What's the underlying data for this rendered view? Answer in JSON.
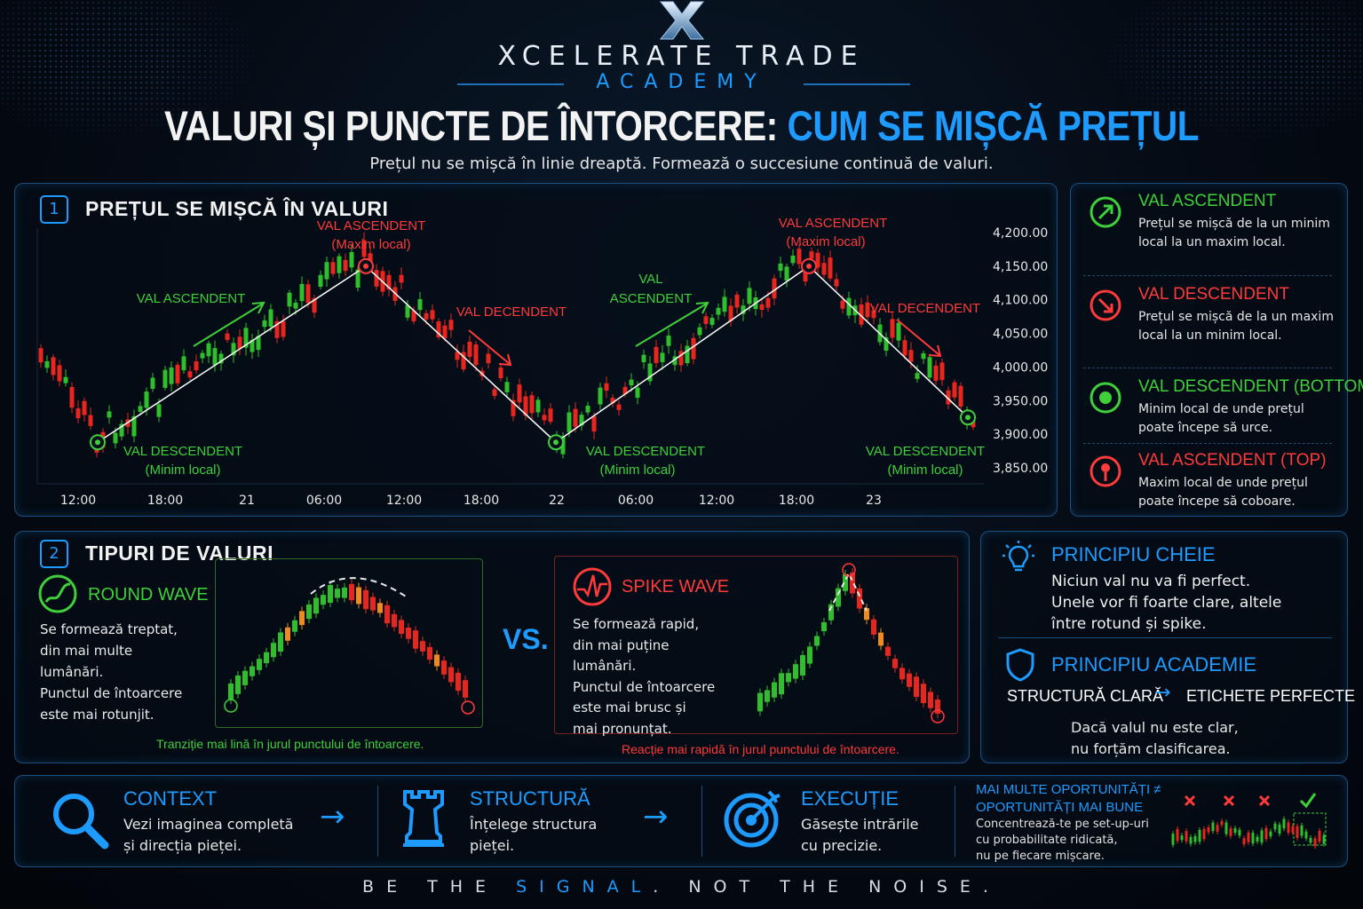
{
  "header": {
    "brand": "XCELERATE TRADE",
    "academy": "ACADEMY",
    "title_white": "VALURI ȘI PUNCTE DE ÎNTORCERE:",
    "title_blue": "CUM SE MIȘCĂ PREȚUL",
    "subtitle": "Prețul nu se mișcă în linie dreaptă. Formează o succesiune continuă de valuri."
  },
  "section1": {
    "num": "1",
    "title": "PREȚUL SE MIȘCĂ ÎN VALURI",
    "labels": {
      "top1_a": "VAL ASCENDENT",
      "top1_b": "(Maxim local)",
      "top2_a": "VAL ASCENDENT",
      "top2_b": "(Maxim local)",
      "bot1_a": "VAL DESCENDENT",
      "bot1_b": "(Minim local)",
      "bot2_a": "VAL DESCENDENT",
      "bot2_b": "(Minim local)",
      "bot3_a": "VAL DESCENDENT",
      "bot3_b": "(Minim local)",
      "up1": "VAL ASCENDENT",
      "up2_a": "VAL",
      "up2_b": "ASCENDENT",
      "down1": "VAL DECENDENT",
      "down2": "VAL DECENDENT"
    }
  },
  "chart_data": {
    "type": "candlestick",
    "x_ticks": [
      "12:00",
      "18:00",
      "21",
      "06:00",
      "12:00",
      "18:00",
      "22",
      "06:00",
      "12:00",
      "18:00",
      "23"
    ],
    "y_ticks": [
      "4,200.00",
      "4,150.00",
      "4,100.00",
      "4,050.00",
      "4,000.00",
      "3,950.00",
      "3,900.00",
      "3,850.00"
    ],
    "ylim": [
      3850,
      4200
    ],
    "swing_points": [
      {
        "label": "Minim local",
        "price": 3888
      },
      {
        "label": "Maxim local",
        "price": 4150
      },
      {
        "label": "Minim local",
        "price": 3888
      },
      {
        "label": "Maxim local",
        "price": 4150
      },
      {
        "label": "Minim local",
        "price": 3925
      }
    ],
    "colors": {
      "up": "#2fbf2c",
      "down": "#e8261f",
      "line": "#ffffff"
    }
  },
  "legend": [
    {
      "title": "VAL ASCENDENT",
      "desc": "Prețul se mișcă de la un minim local la un maxim local.",
      "color": "#3fcf3a",
      "icon": "arrow-up-right-icon"
    },
    {
      "title": "VAL DESCENDENT",
      "desc": "Prețul se mișcă de la un maxim local la un minim local.",
      "color": "#ff3a3a",
      "icon": "arrow-down-right-icon"
    },
    {
      "title": "VAL DESCENDENT (BOTTOM)",
      "desc": "Minim local de unde prețul poate începe să urce.",
      "color": "#3fcf3a",
      "icon": "target-bottom-icon"
    },
    {
      "title_a": "VAL ASCENDENT",
      "title_b": " (TOP)",
      "desc": "Maxim local de unde prețul poate începe să coboare.",
      "color": "#ff3a3a",
      "icon": "pin-top-icon"
    }
  ],
  "section2": {
    "num": "2",
    "title": "TIPURI DE VALURI",
    "round": {
      "title": "ROUND WAVE",
      "desc1": "Se formează treptat,",
      "desc2": "din mai multe",
      "desc3": "lumânări.",
      "desc4": "Punctul de întoarcere",
      "desc5": "este mai rotunjit.",
      "caption": "Tranziție mai lină în jurul punctului de întoarcere."
    },
    "vs": "VS.",
    "spike": {
      "title": "SPIKE WAVE",
      "desc1": "Se formează rapid,",
      "desc2": "din mai puține",
      "desc3": "lumânări.",
      "desc4": "Punctul de întoarcere",
      "desc5": "este mai brusc și",
      "desc6": "mai pronunțat.",
      "caption": "Reacție mai rapidă în jurul punctului de întoarcere."
    }
  },
  "principles": {
    "key_title": "PRINCIPIU CHEIE",
    "key_l1": "Niciun val nu va fi perfect.",
    "key_l2": "Unele vor fi foarte clare, altele",
    "key_l3": "între rotund și spike.",
    "acad_title": "PRINCIPIU ACADEMIE",
    "acad_left": "STRUCTURĂ CLARĂ",
    "acad_right": "ETICHETE PERFECTE",
    "acad_l1": "Dacă valul nu este clar,",
    "acad_l2": "nu forțăm clasificarea."
  },
  "bottom": {
    "context_title": "CONTEXT",
    "context_l1": "Vezi imaginea completă",
    "context_l2": "și direcția pieței.",
    "struct_title": "STRUCTURĂ",
    "struct_l1": "Înțelege structura",
    "struct_l2": "pieței.",
    "exec_title": "EXECUȚIE",
    "exec_l1": "Găsește intrările",
    "exec_l2": "cu precizie.",
    "opp_t1": "MAI MULTE OPORTUNITĂȚI ≠",
    "opp_t2": "OPORTUNITĂȚI MAI BUNE",
    "opp_l1": "Concentrează-te pe set-up-uri",
    "opp_l2": "cu probabilitate ridicată,",
    "opp_l3": "nu pe fiecare mișcare."
  },
  "footer": {
    "part1": "BE THE ",
    "signal": "SIGNAL",
    "part2": ". NOT THE NOISE."
  }
}
